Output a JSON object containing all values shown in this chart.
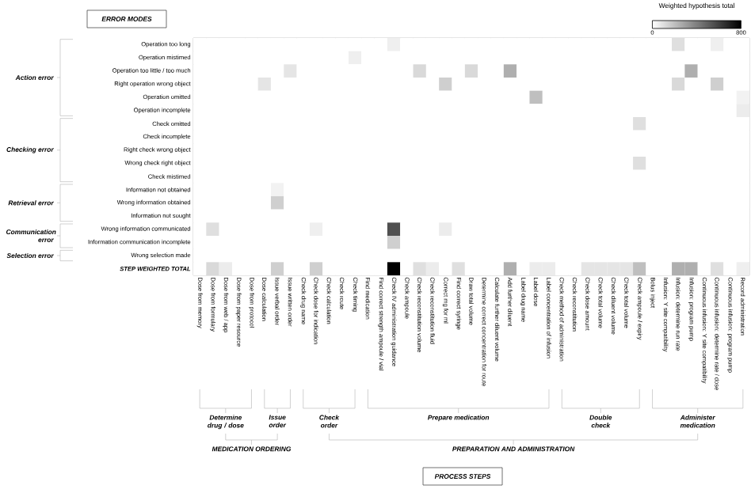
{
  "chart_data": {
    "type": "heatmap",
    "categories": [
      "Dose from memory",
      "Dose from formulary",
      "Dose from web / app",
      "Dose from paper resource",
      "Dose from protocol",
      "Dose calculation",
      "Issue verbal order",
      "Issue written order",
      "Check drug name",
      "Check dose for indication",
      "Check calculation",
      "Check route",
      "Check timing",
      "Find medication",
      "Find correct strength ampoule / vial",
      "Check IV administration guidance",
      "Check ampoule",
      "Check reconstitution volume",
      "Check reconstitution fluid",
      "Correct mg for ml",
      "Find correct syringe",
      "Draw total volume",
      "Determine correct concentration for route",
      "Calculate further diluent volume",
      "Add further diluent",
      "Label drug name",
      "Label dose",
      "Label concentration of infusion",
      "Check method of administration",
      "Check reconstitution",
      "Check dose amount",
      "Check total volume",
      "Check diluent volume",
      "Check total volume",
      "Check ampoule / expiry",
      "Bolus inject",
      "Infusion: Y site compatibility",
      "Infusion: determine run rate",
      "Infusion: program pump",
      "Continuous infusion: Y site compatibility",
      "Continuous infusion: determine rate / dose",
      "Continuous infusion: program pump",
      "Record administration"
    ],
    "y_categories": [
      "Operation too long",
      "Operation mistimed",
      "Operation too little / too much",
      "Right operation wrong object",
      "Operation omitted",
      "Operation incomplete",
      "Check omitted",
      "Check incomplete",
      "Right check wrong object",
      "Wrong check right object",
      "Check mistimed",
      "Information not obtained",
      "Wrong information obtained",
      "Information not sought",
      "Wrong information communicated",
      "Information communication incomplete",
      "Wrong selection made",
      "STEP WEIGHTED TOTAL"
    ],
    "cells": [
      [
        0,
        0,
        0,
        0,
        0,
        0,
        0,
        0,
        0,
        0,
        0,
        0,
        0,
        0,
        0,
        50,
        0,
        0,
        0,
        0,
        0,
        0,
        0,
        0,
        0,
        0,
        0,
        0,
        0,
        0,
        0,
        0,
        0,
        0,
        0,
        0,
        0,
        100,
        0,
        0,
        50,
        0,
        0
      ],
      [
        0,
        0,
        0,
        0,
        0,
        0,
        0,
        0,
        0,
        0,
        0,
        0,
        50,
        0,
        0,
        0,
        0,
        0,
        0,
        0,
        0,
        0,
        0,
        0,
        0,
        0,
        0,
        0,
        0,
        0,
        0,
        0,
        0,
        0,
        0,
        0,
        0,
        0,
        0,
        0,
        0,
        0,
        0
      ],
      [
        0,
        0,
        0,
        0,
        0,
        0,
        0,
        80,
        0,
        0,
        0,
        0,
        0,
        0,
        0,
        0,
        0,
        120,
        0,
        0,
        0,
        120,
        0,
        0,
        250,
        0,
        0,
        0,
        0,
        0,
        0,
        0,
        0,
        0,
        0,
        0,
        0,
        0,
        250,
        0,
        0,
        0,
        0
      ],
      [
        0,
        0,
        0,
        0,
        0,
        80,
        0,
        0,
        0,
        0,
        0,
        0,
        0,
        0,
        0,
        0,
        0,
        0,
        0,
        150,
        0,
        0,
        0,
        0,
        0,
        0,
        0,
        0,
        0,
        0,
        0,
        0,
        0,
        0,
        0,
        0,
        0,
        120,
        0,
        0,
        150,
        0,
        0
      ],
      [
        0,
        0,
        0,
        0,
        0,
        0,
        0,
        0,
        0,
        0,
        0,
        0,
        0,
        0,
        0,
        0,
        0,
        0,
        0,
        0,
        0,
        0,
        0,
        0,
        0,
        0,
        200,
        0,
        0,
        0,
        0,
        0,
        0,
        0,
        0,
        0,
        0,
        0,
        0,
        0,
        0,
        0,
        40
      ],
      [
        0,
        0,
        0,
        0,
        0,
        0,
        0,
        0,
        0,
        0,
        0,
        0,
        0,
        0,
        0,
        0,
        0,
        0,
        0,
        0,
        0,
        0,
        0,
        0,
        0,
        0,
        0,
        0,
        0,
        0,
        0,
        0,
        0,
        0,
        0,
        0,
        0,
        0,
        0,
        0,
        0,
        0,
        60
      ],
      [
        0,
        0,
        0,
        0,
        0,
        0,
        0,
        0,
        0,
        0,
        0,
        0,
        0,
        0,
        0,
        0,
        0,
        0,
        0,
        0,
        0,
        0,
        0,
        0,
        0,
        0,
        0,
        0,
        0,
        0,
        0,
        0,
        0,
        0,
        100,
        0,
        0,
        0,
        0,
        0,
        0,
        0,
        0
      ],
      [
        0,
        0,
        0,
        0,
        0,
        0,
        0,
        0,
        0,
        0,
        0,
        0,
        0,
        0,
        0,
        0,
        0,
        0,
        0,
        0,
        0,
        0,
        0,
        0,
        0,
        0,
        0,
        0,
        0,
        0,
        0,
        0,
        0,
        0,
        0,
        0,
        0,
        0,
        0,
        0,
        0,
        0,
        0
      ],
      [
        0,
        0,
        0,
        0,
        0,
        0,
        0,
        0,
        0,
        0,
        0,
        0,
        0,
        0,
        0,
        0,
        0,
        0,
        0,
        0,
        0,
        0,
        0,
        0,
        0,
        0,
        0,
        0,
        0,
        0,
        0,
        0,
        0,
        0,
        0,
        0,
        0,
        0,
        0,
        0,
        0,
        0,
        0
      ],
      [
        0,
        0,
        0,
        0,
        0,
        0,
        0,
        0,
        0,
        0,
        0,
        0,
        0,
        0,
        0,
        0,
        0,
        0,
        0,
        0,
        0,
        0,
        0,
        0,
        0,
        0,
        0,
        0,
        0,
        0,
        0,
        0,
        0,
        0,
        100,
        0,
        0,
        0,
        0,
        0,
        0,
        0,
        0
      ],
      [
        0,
        0,
        0,
        0,
        0,
        0,
        0,
        0,
        0,
        0,
        0,
        0,
        0,
        0,
        0,
        0,
        0,
        0,
        0,
        0,
        0,
        0,
        0,
        0,
        0,
        0,
        0,
        0,
        0,
        0,
        0,
        0,
        0,
        0,
        0,
        0,
        0,
        0,
        0,
        0,
        0,
        0,
        0
      ],
      [
        0,
        0,
        0,
        0,
        0,
        0,
        40,
        0,
        0,
        0,
        0,
        0,
        0,
        0,
        0,
        0,
        0,
        0,
        0,
        0,
        0,
        0,
        0,
        0,
        0,
        0,
        0,
        0,
        0,
        0,
        0,
        0,
        0,
        0,
        0,
        0,
        0,
        0,
        0,
        0,
        0,
        0,
        0
      ],
      [
        0,
        0,
        0,
        0,
        0,
        0,
        150,
        0,
        0,
        0,
        0,
        0,
        0,
        0,
        0,
        0,
        0,
        0,
        0,
        0,
        0,
        0,
        0,
        0,
        0,
        0,
        0,
        0,
        0,
        0,
        0,
        0,
        0,
        0,
        0,
        0,
        0,
        0,
        0,
        0,
        0,
        0,
        0
      ],
      [
        0,
        0,
        0,
        0,
        0,
        0,
        0,
        0,
        0,
        0,
        0,
        0,
        0,
        0,
        0,
        0,
        0,
        0,
        0,
        0,
        0,
        0,
        0,
        0,
        0,
        0,
        0,
        0,
        0,
        0,
        0,
        0,
        0,
        0,
        0,
        0,
        0,
        0,
        0,
        0,
        0,
        0,
        0
      ],
      [
        0,
        100,
        0,
        0,
        0,
        0,
        0,
        0,
        0,
        50,
        0,
        0,
        0,
        0,
        0,
        550,
        0,
        0,
        0,
        60,
        0,
        0,
        0,
        0,
        0,
        0,
        0,
        0,
        0,
        0,
        0,
        0,
        0,
        0,
        0,
        0,
        0,
        0,
        0,
        0,
        0,
        0,
        0
      ],
      [
        0,
        0,
        0,
        0,
        0,
        0,
        0,
        0,
        0,
        0,
        0,
        0,
        0,
        0,
        0,
        150,
        0,
        0,
        0,
        0,
        0,
        0,
        0,
        0,
        0,
        0,
        0,
        0,
        0,
        0,
        0,
        0,
        0,
        0,
        0,
        0,
        0,
        0,
        0,
        0,
        0,
        0,
        0
      ],
      [
        0,
        0,
        0,
        0,
        0,
        0,
        0,
        0,
        0,
        0,
        0,
        0,
        0,
        0,
        0,
        0,
        0,
        0,
        0,
        0,
        0,
        0,
        0,
        0,
        0,
        0,
        0,
        0,
        0,
        0,
        0,
        0,
        0,
        0,
        0,
        0,
        0,
        0,
        0,
        0,
        0,
        0,
        0
      ],
      [
        0,
        120,
        60,
        0,
        0,
        0,
        150,
        0,
        0,
        150,
        0,
        0,
        0,
        0,
        0,
        800,
        0,
        100,
        60,
        0,
        100,
        0,
        0,
        0,
        250,
        0,
        60,
        60,
        0,
        0,
        80,
        80,
        80,
        80,
        200,
        0,
        0,
        250,
        250,
        0,
        100,
        0,
        50
      ]
    ],
    "clim": [
      0,
      800
    ],
    "cticks": [
      0,
      800
    ],
    "clabel": "Weighted hypothesis total",
    "annotations": [
      "ERROR MODES",
      "PROCESS STEPS",
      "Action error",
      "Checking error",
      "Retrieval error",
      "Communication error",
      "Selection error",
      "Determine drug / dose",
      "Issue order",
      "Check order",
      "Prepare medication",
      "Double check",
      "Administer medication",
      "MEDICATION ORDERING",
      "PREPARATION AND ADMINISTRATION"
    ]
  }
}
